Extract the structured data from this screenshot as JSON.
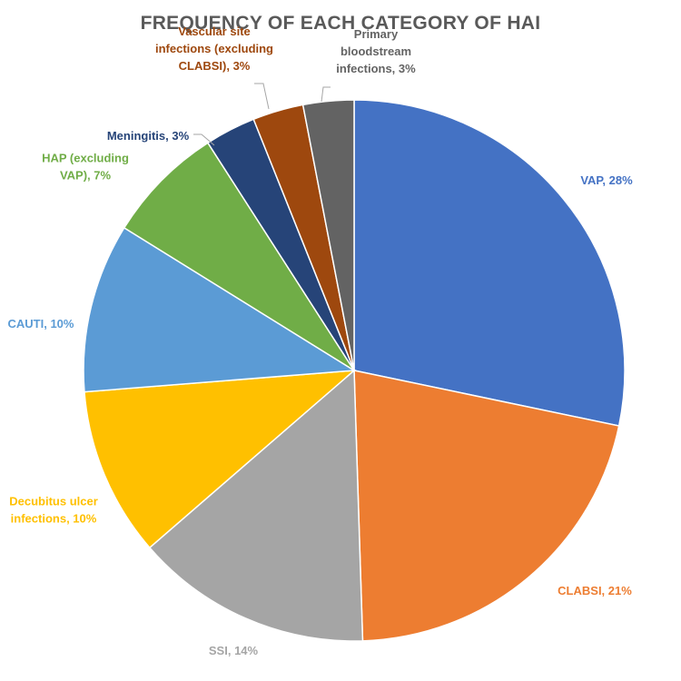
{
  "chart_data": {
    "type": "pie",
    "title": "FREQUENCY OF EACH CATEGORY OF HAI",
    "categories": [
      "VAP",
      "CLABSI",
      "SSI",
      "Decubitus ulcer infections",
      "CAUTI",
      "HAP (excluding VAP)",
      "Meningitis",
      "Vascular site infections (excluding CLABSI)",
      "Primary bloodstream infections"
    ],
    "values": [
      28,
      21,
      14,
      10,
      10,
      7,
      3,
      3,
      3
    ],
    "colors": [
      "#4472C4",
      "#ED7D31",
      "#A5A5A5",
      "#FFC000",
      "#5B9BD5",
      "#70AD47",
      "#264478",
      "#9E480E",
      "#636363"
    ],
    "labels": [
      "VAP, 28%",
      "CLABSI, 21%",
      "SSI, 14%",
      "Decubitus ulcer infections, 10%",
      "CAUTI, 10%",
      "HAP (excluding VAP), 7%",
      "Meningitis, 3%",
      "Vascular site infections (excluding CLABSI), 3%",
      "Primary bloodstream infections, 3%"
    ],
    "label_lines": [
      [
        "VAP, 28%"
      ],
      [
        "CLABSI, 21%"
      ],
      [
        "SSI, 14%"
      ],
      [
        "Decubitus ulcer",
        "infections, 10%"
      ],
      [
        "CAUTI, 10%"
      ],
      [
        "HAP (excluding",
        "VAP), 7%"
      ],
      [
        "Meningitis, 3%"
      ],
      [
        "Vascular site",
        "infections (excluding",
        "CLABSI), 3%"
      ],
      [
        "Primary",
        "bloodstream",
        "infections, 3%"
      ]
    ],
    "label_colors": [
      "#4472C4",
      "#ED7D31",
      "#A5A5A5",
      "#FFC000",
      "#5B9BD5",
      "#70AD47",
      "#264478",
      "#9E480E",
      "#636363"
    ],
    "start_angle_deg": 0,
    "direction": "clockwise",
    "legend": "none"
  }
}
